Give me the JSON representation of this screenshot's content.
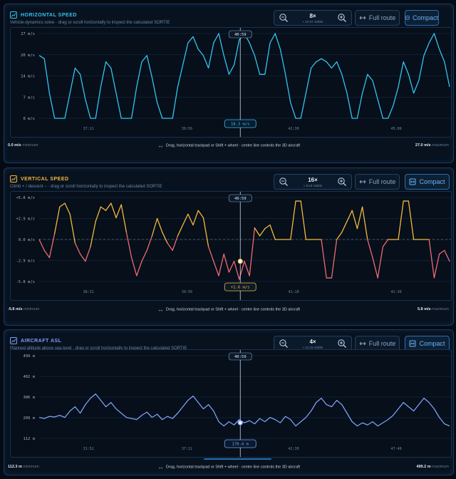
{
  "ui": {
    "full_route_label": "Full route",
    "compact_label": "Compact",
    "drag_hint": "Drag, horizontal trackpad or Shift + wheel · centre line controls the 3D aircraft"
  },
  "panels": [
    {
      "id": "hspeed",
      "title": "HORIZONTAL SPEED",
      "subtitle": "Vehicle-dynamics solve · drag or scroll horizontally to inspect the calculated SORTIE",
      "accent": "#33c4f0",
      "zoom": "8×",
      "zoom_sub": "≈ 10:37 visible",
      "cursor_time": "40:59",
      "cursor_value": "18.3 m/s",
      "min_value": "0.0 m/s",
      "min_label": "minimum",
      "max_value": "27.0 m/s",
      "max_label": "maximum",
      "y_ticks": [
        "27 m/s",
        "20 m/s",
        "14 m/s",
        "7 m/s",
        "0 m/s"
      ],
      "x_ticks": [
        "37:11",
        "39:50",
        "42:30",
        "45:09"
      ],
      "chart_data": {
        "type": "line",
        "ylim": [
          0,
          27
        ],
        "x": [
          0,
          1,
          2,
          3,
          4,
          5,
          6,
          7,
          8,
          9,
          10,
          11,
          12,
          13,
          14,
          15,
          16,
          17,
          18,
          19,
          20,
          21,
          22,
          23,
          24,
          25,
          26,
          27,
          28,
          29,
          30,
          31,
          32,
          33,
          34,
          35,
          36,
          37,
          38,
          39,
          40,
          41,
          42,
          43,
          44,
          45,
          46,
          47,
          48,
          49,
          50,
          51,
          52,
          53,
          54,
          55,
          56,
          57,
          58,
          59,
          60,
          61,
          62,
          63,
          64,
          65,
          66,
          67,
          68,
          69,
          70,
          71,
          72,
          73,
          74,
          75,
          76,
          77,
          78,
          79,
          80
        ],
        "values": [
          20,
          19,
          8,
          0,
          0,
          0,
          8,
          16,
          14,
          6,
          0,
          0,
          10,
          18,
          16,
          8,
          0,
          0,
          0,
          10,
          18,
          20,
          13,
          5,
          0,
          0,
          0,
          10,
          17,
          24,
          26,
          22,
          20,
          16,
          24,
          27,
          20,
          14,
          17,
          25,
          27,
          24,
          20,
          14,
          14,
          24,
          27,
          22,
          14,
          5,
          0,
          0,
          8,
          16,
          18,
          19,
          18,
          16,
          18,
          14,
          8,
          0,
          0,
          8,
          14,
          12,
          6,
          0,
          0,
          4,
          10,
          18,
          14,
          8,
          12,
          20,
          24,
          27,
          22,
          18,
          10
        ]
      }
    },
    {
      "id": "vspeed",
      "title": "VERTICAL SPEED",
      "subtitle": "Climb + / descent − · drag or scroll horizontally to inspect the calculated SORTIE",
      "accent": "#f5b83a",
      "accent_neg": "#f06a72",
      "zoom": "16×",
      "zoom_sub": "≈ 5:19 visible",
      "cursor_time": "40:59",
      "cursor_value": "+1.6 m/s",
      "min_value": "-5.8 m/s",
      "min_label": "minimum",
      "max_value": "5.8 m/s",
      "max_label": "maximum",
      "y_ticks": [
        "+5.8 m/s",
        "+2.9 m/s",
        "0.0 m/s",
        "-2.9 m/s",
        "-5.8 m/s"
      ],
      "x_ticks": [
        "38:31",
        "39:50",
        "41:10",
        "42:30"
      ],
      "chart_data": {
        "type": "line",
        "ylim": [
          -5.8,
          5.8
        ],
        "x": [
          0,
          1,
          2,
          3,
          4,
          5,
          6,
          7,
          8,
          9,
          10,
          11,
          12,
          13,
          14,
          15,
          16,
          17,
          18,
          19,
          20,
          21,
          22,
          23,
          24,
          25,
          26,
          27,
          28,
          29,
          30,
          31,
          32,
          33,
          34,
          35,
          36,
          37,
          38,
          39,
          40,
          41,
          42,
          43,
          44,
          45,
          46,
          47,
          48,
          49,
          50,
          51,
          52,
          53,
          54,
          55,
          56,
          57,
          58,
          59,
          60,
          61,
          62,
          63,
          64,
          65,
          66,
          67,
          68,
          69,
          70,
          71,
          72,
          73,
          74,
          75,
          76,
          77,
          78,
          79,
          80
        ],
        "values": [
          0,
          -1.5,
          -2.5,
          0.8,
          4.5,
          5,
          3.5,
          -0.5,
          -2,
          -3,
          -1,
          2.5,
          4.5,
          4,
          5,
          3,
          4.8,
          1,
          -2.5,
          -5,
          -3,
          -1.5,
          0.5,
          2.9,
          1,
          -0.5,
          -1.5,
          0.5,
          2,
          3.5,
          2,
          4,
          3,
          -1,
          -3,
          -5,
          -2,
          -4.5,
          -3,
          -5.5,
          -3,
          -5,
          1.6,
          0.5,
          1.5,
          2,
          0,
          0,
          0,
          0,
          5.3,
          5.3,
          0,
          0,
          0,
          0,
          -5.3,
          -5.3,
          0,
          1,
          2.5,
          4,
          1.5,
          4.5,
          0,
          -2.5,
          -5.3,
          -1,
          0,
          0,
          0,
          5.3,
          5.3,
          0,
          0,
          0,
          0,
          -5.3,
          -2,
          -1.5,
          -3
        ]
      }
    },
    {
      "id": "asl",
      "title": "AIRCRAFT ASL",
      "subtitle": "Planned altitude above sea level · drag or scroll horizontally to inspect the calculated SORTIE",
      "accent": "#7d9ff5",
      "zoom": "4×",
      "zoom_sub": "≈ 21:15 visible",
      "cursor_time": "40:59",
      "cursor_value": "170.4 m",
      "min_value": "112.3 m",
      "min_label": "minimum",
      "max_value": "499.2 m",
      "max_label": "maximum",
      "y_ticks": [
        "499 m",
        "402 m",
        "306 m",
        "209 m",
        "112 m"
      ],
      "x_ticks": [
        "31:52",
        "37:11",
        "42:30",
        "47:48"
      ],
      "chart_data": {
        "type": "line",
        "ylim": [
          112,
          499
        ],
        "x": [
          0,
          1,
          2,
          3,
          4,
          5,
          6,
          7,
          8,
          9,
          10,
          11,
          12,
          13,
          14,
          15,
          16,
          17,
          18,
          19,
          20,
          21,
          22,
          23,
          24,
          25,
          26,
          27,
          28,
          29,
          30,
          31,
          32,
          33,
          34,
          35,
          36,
          37,
          38,
          39,
          40,
          41,
          42,
          43,
          44,
          45,
          46,
          47,
          48,
          49,
          50,
          51,
          52,
          53,
          54,
          55,
          56,
          57,
          58,
          59,
          60,
          61,
          62,
          63,
          64,
          65,
          66,
          67,
          68,
          69,
          70,
          71,
          72,
          73,
          74,
          75,
          76,
          77,
          78,
          79,
          80
        ],
        "values": [
          210,
          205,
          215,
          212,
          220,
          210,
          240,
          260,
          230,
          270,
          300,
          320,
          290,
          260,
          280,
          250,
          230,
          210,
          205,
          200,
          220,
          235,
          210,
          225,
          200,
          215,
          205,
          230,
          260,
          290,
          310,
          280,
          250,
          270,
          240,
          190,
          170,
          190,
          175,
          200,
          185,
          195,
          180,
          205,
          190,
          210,
          200,
          185,
          215,
          200,
          170,
          190,
          210,
          240,
          280,
          300,
          270,
          260,
          290,
          270,
          230,
          190,
          170,
          185,
          175,
          190,
          170,
          185,
          200,
          220,
          250,
          280,
          260,
          240,
          270,
          300,
          280,
          250,
          210,
          180,
          170
        ]
      }
    }
  ]
}
